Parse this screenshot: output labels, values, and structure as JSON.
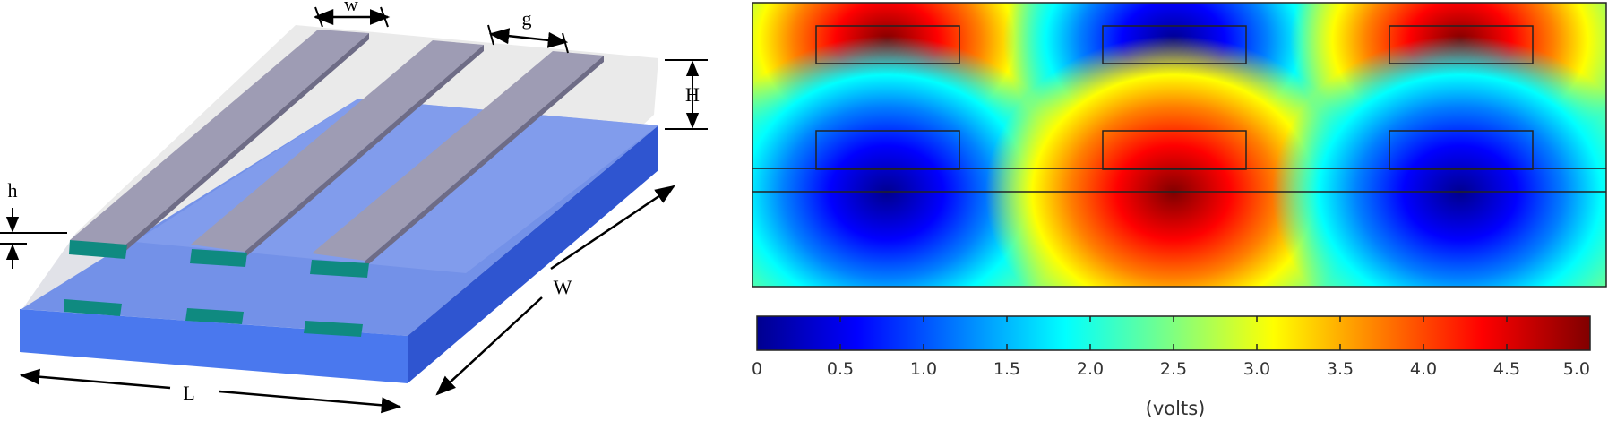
{
  "schematic": {
    "dimension_labels": {
      "strip_width": "w",
      "gap": "g",
      "cover_height": "H",
      "strip_thickness": "h",
      "length": "L",
      "width": "W"
    },
    "colors": {
      "substrate_side": "#4a78ee",
      "substrate_top": "#6f8fe6",
      "cover": "#e8e8e8",
      "top_strip": "#9e9cb4",
      "buried_electrode": "#0f8a80"
    }
  },
  "field_map": {
    "polarity": {
      "top_row": [
        "high",
        "low",
        "high"
      ],
      "bottom_row": [
        "low",
        "high",
        "low"
      ]
    }
  },
  "colorbar": {
    "ticks": [
      "0",
      "0.5",
      "1.0",
      "1.5",
      "2.0",
      "2.5",
      "3.0",
      "3.5",
      "4.0",
      "4.5",
      "5.0"
    ],
    "unit_label": "(volts)",
    "range": [
      0,
      5
    ],
    "colormap": [
      "#00008f",
      "#0000ff",
      "#0080ff",
      "#00ffff",
      "#80ff80",
      "#ffff00",
      "#ff8000",
      "#ff0000",
      "#800000"
    ]
  }
}
